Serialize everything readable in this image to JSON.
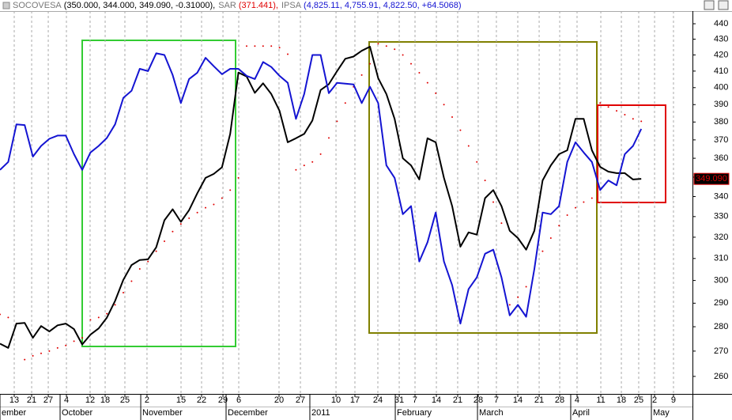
{
  "chart_data": {
    "type": "line",
    "log_scale": true,
    "series": [
      {
        "name": "SOCOVESA",
        "readout": "(350.000, 344.000, 349.090, -0.31000),",
        "color": "#000000",
        "readout_color": "#000000",
        "style": "line",
        "values": [
          273.0,
          271.3,
          281.3,
          281.6,
          275.4,
          280.3,
          278.0,
          280.6,
          281.3,
          279.0,
          272.7,
          276.7,
          279.3,
          283.8,
          291,
          300.3,
          307,
          309.3,
          309.6,
          315.2,
          328.2,
          333.6,
          327.4,
          333.2,
          341.7,
          349.6,
          351.7,
          355.2,
          373.3,
          409.1,
          406.7,
          396.9,
          402.6,
          396.2,
          386.4,
          368.7,
          370.9,
          373.3,
          380.9,
          398.6,
          402.1,
          410,
          417.6,
          419.0,
          422.6,
          425.2,
          405.7,
          396.2,
          381.8,
          360,
          356.2,
          348.8,
          370.9,
          368.7,
          349.6,
          335.2,
          315.5,
          322.3,
          321.2,
          339.2,
          343.3,
          335.2,
          323.1,
          319.6,
          314.1,
          323.1,
          348.3,
          356.2,
          362.2,
          364.3,
          381.8,
          381.8,
          364.3,
          355.4,
          352.9,
          352.1,
          352.1,
          348.8,
          349.1
        ]
      },
      {
        "name": "SAR",
        "readout": "(371.441),",
        "color": "#e00000",
        "readout_color": "#e00000",
        "style": "dots",
        "values": [
          285.2,
          283.9,
          281.3,
          266.6,
          268.1,
          269.1,
          270,
          271.3,
          272.3,
          274,
          275.4,
          282.9,
          283.9,
          285.5,
          289.3,
          294.6,
          299.7,
          305.2,
          308.6,
          313.4,
          318.1,
          322.7,
          326.4,
          329.2,
          332,
          334.4,
          336,
          339.2,
          343.3,
          349.6,
          425.6,
          425.6,
          425.6,
          425.6,
          424.6,
          420.5,
          353.8,
          356.2,
          358,
          362.2,
          371.1,
          380.4,
          390.9,
          400.5,
          407.6,
          414.5,
          427.1,
          425.6,
          423.6,
          420,
          414.5,
          409,
          402.9,
          396.7,
          390,
          382.8,
          375.4,
          366.7,
          358,
          348.3,
          337.2,
          326.8,
          289.3,
          292.6,
          297.2,
          305.2,
          313.4,
          319.6,
          325.6,
          330.7,
          334.4,
          337.2,
          339.2,
          390.9,
          388.6,
          386.4,
          384.2,
          381.8,
          380.4
        ]
      },
      {
        "name": "IPSA",
        "readout": "(4,825.11, 4,755.91, 4,822.50, +64.5068)",
        "color": "#1414d2",
        "readout_color": "#1414d2",
        "style": "line",
        "values": [
          353.8,
          358.0,
          378.7,
          378.3,
          360.9,
          366.7,
          370.6,
          372.4,
          372.4,
          362.2,
          353.8,
          363.1,
          366.7,
          371.1,
          378.7,
          393.9,
          398.1,
          411.4,
          410,
          421,
          420,
          407.6,
          390.9,
          405.2,
          409,
          418.2,
          413,
          408.1,
          411.4,
          411.4,
          407.1,
          405.2,
          415.6,
          412.5,
          407.1,
          402.9,
          381.8,
          396.2,
          420,
          420,
          396.7,
          402.9,
          402.4,
          401.9,
          390.9,
          400.5,
          390.9,
          356.2,
          349.6,
          331.2,
          335.2,
          308.6,
          317.6,
          332,
          308.6,
          297.9,
          281.3,
          296.2,
          301.4,
          312.2,
          314.1,
          301.4,
          284.8,
          289.3,
          284.2,
          305.2,
          332,
          331.2,
          335.2,
          358,
          368.7,
          363.1,
          358,
          343.3,
          348.3,
          345.8,
          362.2,
          366.7,
          376.1
        ]
      }
    ],
    "last_value": {
      "value": 349.09,
      "label": "349.090"
    },
    "ylim": [
      253.3,
      448.4
    ],
    "yticks": [
      260,
      270,
      280,
      290,
      300,
      310,
      320,
      330,
      340,
      350,
      360,
      370,
      380,
      390,
      400,
      410,
      420,
      430,
      440
    ],
    "xlim": [
      0,
      84.23
    ],
    "xticks": [
      {
        "value": 1.73,
        "label": "13"
      },
      {
        "value": 3.85,
        "label": "21"
      },
      {
        "value": 5.87,
        "label": "27"
      },
      {
        "value": 8.08,
        "label": "4"
      },
      {
        "value": 10.96,
        "label": "12"
      },
      {
        "value": 12.79,
        "label": "18"
      },
      {
        "value": 15.19,
        "label": "25"
      },
      {
        "value": 17.88,
        "label": "2"
      },
      {
        "value": 22.02,
        "label": "15"
      },
      {
        "value": 24.52,
        "label": "22"
      },
      {
        "value": 27.12,
        "label": "29"
      },
      {
        "value": 29.04,
        "label": "6"
      },
      {
        "value": 33.94,
        "label": "20"
      },
      {
        "value": 36.54,
        "label": "27"
      },
      {
        "value": 40.87,
        "label": "10"
      },
      {
        "value": 43.17,
        "label": "17"
      },
      {
        "value": 45.96,
        "label": "24"
      },
      {
        "value": 48.56,
        "label": "31"
      },
      {
        "value": 50.48,
        "label": "7"
      },
      {
        "value": 53.08,
        "label": "14"
      },
      {
        "value": 55.67,
        "label": "21"
      },
      {
        "value": 58.17,
        "label": "28"
      },
      {
        "value": 60.38,
        "label": "7"
      },
      {
        "value": 62.98,
        "label": "14"
      },
      {
        "value": 65.58,
        "label": "21"
      },
      {
        "value": 68.08,
        "label": "28"
      },
      {
        "value": 70.19,
        "label": "4"
      },
      {
        "value": 73.08,
        "label": "11"
      },
      {
        "value": 75.58,
        "label": "18"
      },
      {
        "value": 77.69,
        "label": "25"
      },
      {
        "value": 79.62,
        "label": "2"
      },
      {
        "value": 81.92,
        "label": "9"
      }
    ],
    "month_labels": [
      {
        "value": 0,
        "label": "ember"
      },
      {
        "value": 7.31,
        "label": "October"
      },
      {
        "value": 17.12,
        "label": "November"
      },
      {
        "value": 27.5,
        "label": "December"
      },
      {
        "value": 37.69,
        "label": "2011"
      },
      {
        "value": 48.08,
        "label": "February"
      },
      {
        "value": 58.08,
        "label": "March"
      },
      {
        "value": 69.42,
        "label": "April"
      },
      {
        "value": 79.23,
        "label": "May"
      }
    ],
    "grid": true
  }
}
